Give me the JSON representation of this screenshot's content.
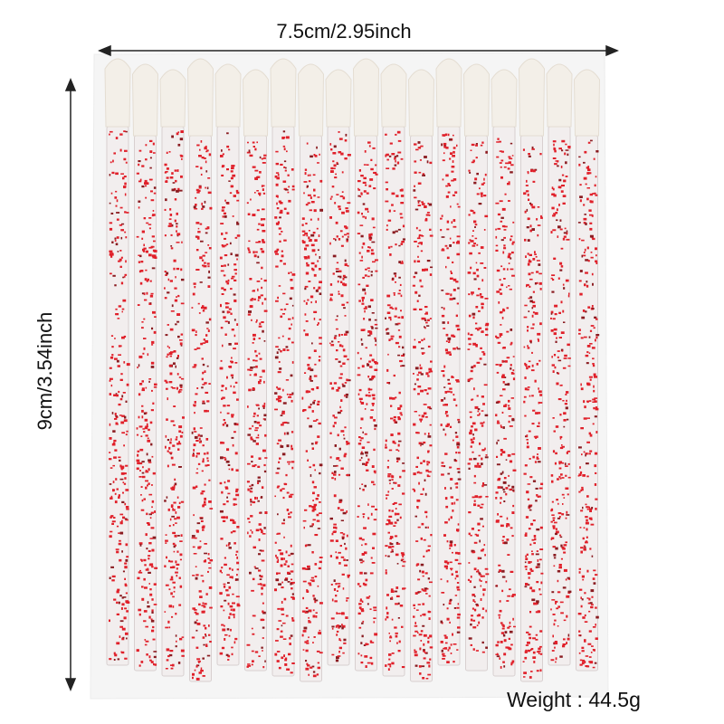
{
  "dimensions": {
    "width_label": "7.5cm/2.95inch",
    "height_label": "9cm/3.54inch",
    "weight_label": "Weight : 44.5g"
  },
  "product": {
    "brush_count_visible": 18,
    "colors": {
      "glitter": "#e0202a",
      "tip": "#f3efe8",
      "stick": "#f2eeee",
      "bag": "#eeeeee",
      "arrow": "#222222"
    }
  }
}
